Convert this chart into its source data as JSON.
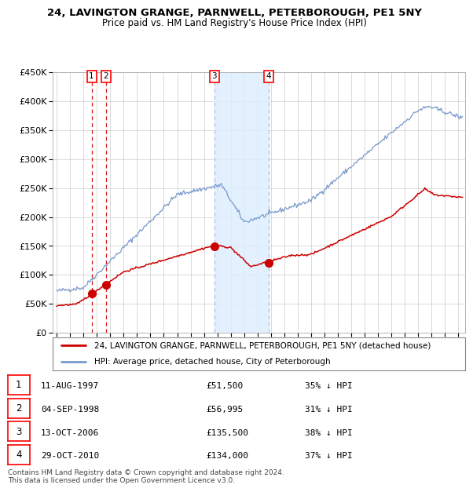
{
  "title1": "24, LAVINGTON GRANGE, PARNWELL, PETERBOROUGH, PE1 5NY",
  "title2": "Price paid vs. HM Land Registry's House Price Index (HPI)",
  "ylim": [
    0,
    450000
  ],
  "yticks": [
    0,
    50000,
    100000,
    150000,
    200000,
    250000,
    300000,
    350000,
    400000,
    450000
  ],
  "ytick_labels": [
    "£0",
    "£50K",
    "£100K",
    "£150K",
    "£200K",
    "£250K",
    "£300K",
    "£350K",
    "£400K",
    "£450K"
  ],
  "xlim_start": 1994.7,
  "xlim_end": 2025.5,
  "transactions": [
    {
      "num": 1,
      "date": "11-AUG-1997",
      "year": 1997.61,
      "price": 51500,
      "pct": "35% ↓ HPI"
    },
    {
      "num": 2,
      "date": "04-SEP-1998",
      "year": 1998.67,
      "price": 56995,
      "pct": "31% ↓ HPI"
    },
    {
      "num": 3,
      "date": "13-OCT-2006",
      "year": 2006.78,
      "price": 135500,
      "pct": "38% ↓ HPI"
    },
    {
      "num": 4,
      "date": "29-OCT-2010",
      "year": 2010.82,
      "price": 134000,
      "pct": "37% ↓ HPI"
    }
  ],
  "hpi_color": "#7799cc",
  "price_color": "#cc0000",
  "vline_color_12": "#cc0000",
  "vline_color_34": "#aabbdd",
  "shade_color": "#ddeeff",
  "background_color": "#ffffff",
  "grid_color": "#cccccc",
  "legend_line1": "24, LAVINGTON GRANGE, PARNWELL, PETERBOROUGH, PE1 5NY (detached house)",
  "legend_line2": "HPI: Average price, detached house, City of Peterborough",
  "footer": "Contains HM Land Registry data © Crown copyright and database right 2024.\nThis data is licensed under the Open Government Licence v3.0."
}
